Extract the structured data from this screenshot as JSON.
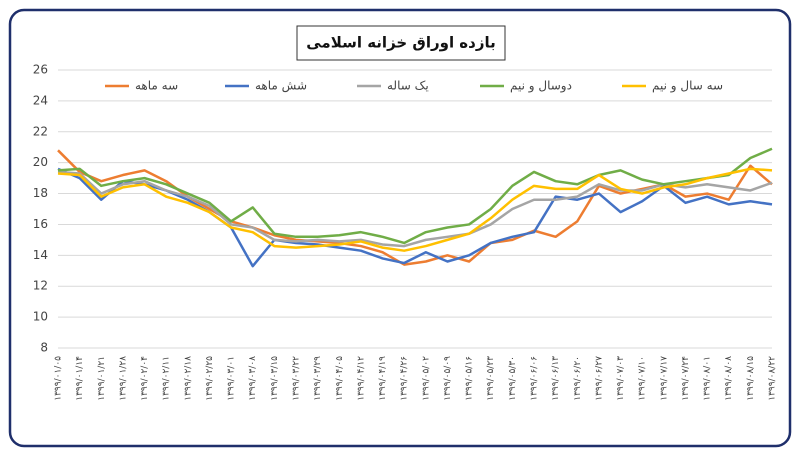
{
  "chart_data": {
    "type": "line",
    "title": "بازده اوراق خزانه اسلامی",
    "categories": [
      "۱۳۹۹/۰۱/۰۵",
      "۱۳۹۹/۰۱/۱۴",
      "۱۳۹۹/۰۱/۲۱",
      "۱۳۹۹/۰۱/۲۸",
      "۱۳۹۹/۰۲/۰۴",
      "۱۳۹۹/۰۲/۱۱",
      "۱۳۹۹/۰۲/۱۸",
      "۱۳۹۹/۰۲/۲۵",
      "۱۳۹۹/۰۳/۰۱",
      "۱۳۹۹/۰۳/۰۸",
      "۱۳۹۹/۰۳/۱۵",
      "۱۳۹۹/۰۳/۲۲",
      "۱۳۹۹/۰۳/۲۹",
      "۱۳۹۹/۰۴/۰۵",
      "۱۳۹۹/۰۴/۱۲",
      "۱۳۹۹/۰۴/۱۹",
      "۱۳۹۹/۰۴/۲۶",
      "۱۳۹۹/۰۵/۰۲",
      "۱۳۹۹/۰۵/۰۹",
      "۱۳۹۹/۰۵/۱۶",
      "۱۳۹۹/۰۵/۲۳",
      "۱۳۹۹/۰۵/۳۰",
      "۱۳۹۹/۰۶/۰۶",
      "۱۳۹۹/۰۶/۱۳",
      "۱۳۹۹/۰۶/۲۰",
      "۱۳۹۹/۰۶/۲۷",
      "۱۳۹۹/۰۷/۰۳",
      "۱۳۹۹/۰۷/۱۰",
      "۱۳۹۹/۰۷/۱۷",
      "۱۳۹۹/۰۷/۲۴",
      "۱۳۹۹/۰۸/۰۱",
      "۱۳۹۹/۰۸/۰۸",
      "۱۳۹۹/۰۸/۱۵",
      "۱۳۹۹/۰۸/۲۲"
    ],
    "series": [
      {
        "name": "سه ماهه",
        "color": "#ed7d31",
        "values": [
          20.8,
          19.4,
          18.8,
          19.2,
          19.5,
          18.8,
          17.8,
          17.0,
          16.2,
          15.8,
          15.3,
          15.0,
          14.9,
          14.8,
          14.6,
          14.2,
          13.4,
          13.6,
          14.0,
          13.6,
          14.8,
          15.0,
          15.6,
          15.2,
          16.2,
          18.5,
          18.0,
          18.3,
          18.6,
          17.8,
          18.0,
          17.6,
          19.8,
          18.6
        ]
      },
      {
        "name": "شش ماهه",
        "color": "#4472c4",
        "values": [
          19.6,
          19.0,
          17.6,
          18.8,
          18.6,
          18.2,
          17.6,
          16.8,
          15.8,
          13.3,
          15.0,
          14.8,
          14.7,
          14.5,
          14.3,
          13.8,
          13.5,
          14.2,
          13.6,
          14.0,
          14.8,
          15.2,
          15.5,
          17.8,
          17.6,
          18.0,
          16.8,
          17.5,
          18.5,
          17.4,
          17.8,
          17.3,
          17.5,
          17.3
        ]
      },
      {
        "name": "یک ساله",
        "color": "#a5a5a5",
        "values": [
          19.4,
          19.3,
          18.0,
          18.6,
          18.8,
          18.2,
          17.8,
          17.2,
          16.0,
          15.8,
          15.0,
          14.9,
          15.0,
          14.9,
          15.0,
          14.7,
          14.6,
          15.0,
          15.2,
          15.4,
          16.0,
          17.0,
          17.6,
          17.6,
          17.8,
          18.6,
          18.2,
          18.2,
          18.6,
          18.4,
          18.6,
          18.4,
          18.2,
          18.7
        ]
      },
      {
        "name": "دوسال و نیم",
        "color": "#70ad47",
        "values": [
          19.5,
          19.6,
          18.5,
          18.8,
          19.0,
          18.6,
          18.0,
          17.4,
          16.2,
          17.1,
          15.4,
          15.2,
          15.2,
          15.3,
          15.5,
          15.2,
          14.8,
          15.5,
          15.8,
          16.0,
          17.0,
          18.5,
          19.4,
          18.8,
          18.6,
          19.2,
          19.5,
          18.9,
          18.6,
          18.8,
          19.0,
          19.2,
          20.3,
          20.9
        ]
      },
      {
        "name": "سه سال و نیم",
        "color": "#ffc000",
        "values": [
          19.3,
          19.2,
          17.8,
          18.4,
          18.6,
          17.8,
          17.4,
          16.8,
          15.8,
          15.5,
          14.6,
          14.5,
          14.6,
          14.7,
          14.9,
          14.5,
          14.3,
          14.6,
          15.0,
          15.4,
          16.4,
          17.6,
          18.5,
          18.3,
          18.3,
          19.2,
          18.3,
          18.0,
          18.4,
          18.6,
          19.0,
          19.3,
          19.6,
          19.5
        ]
      }
    ],
    "ylim": [
      8,
      26
    ],
    "yticks": [
      8,
      10,
      12,
      14,
      16,
      18,
      20,
      22,
      24,
      26
    ],
    "grid": true
  }
}
